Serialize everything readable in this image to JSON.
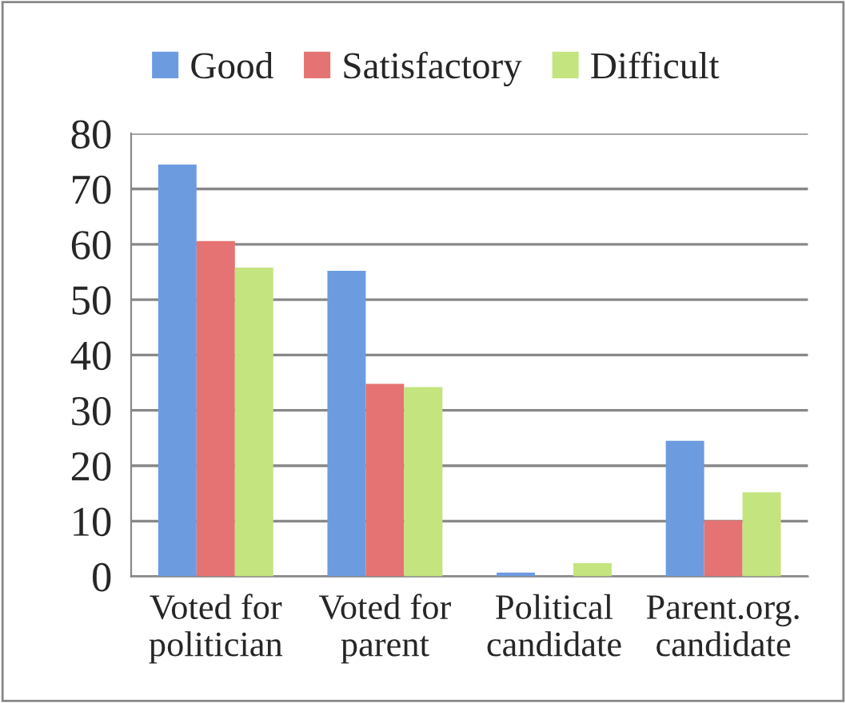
{
  "chart_data": {
    "type": "bar",
    "categories": [
      "Voted for\npolitician",
      "Voted for\nparent",
      "Political\ncandidate",
      "Parent.org.\ncandidate"
    ],
    "series": [
      {
        "name": "Good",
        "color": "#6d9be0",
        "values": [
          74.4,
          55.2,
          0.7,
          24.5
        ]
      },
      {
        "name": "Satisfactory",
        "color": "#e57373",
        "values": [
          60.6,
          34.8,
          null,
          10.1
        ]
      },
      {
        "name": "Difficult",
        "color": "#c3e47e",
        "values": [
          55.8,
          34.2,
          2.4,
          15.2
        ]
      }
    ],
    "ylim": [
      0,
      80
    ],
    "yticks": [
      0,
      10,
      20,
      30,
      40,
      50,
      60,
      70,
      80
    ],
    "grid": "y",
    "legend": "top"
  }
}
